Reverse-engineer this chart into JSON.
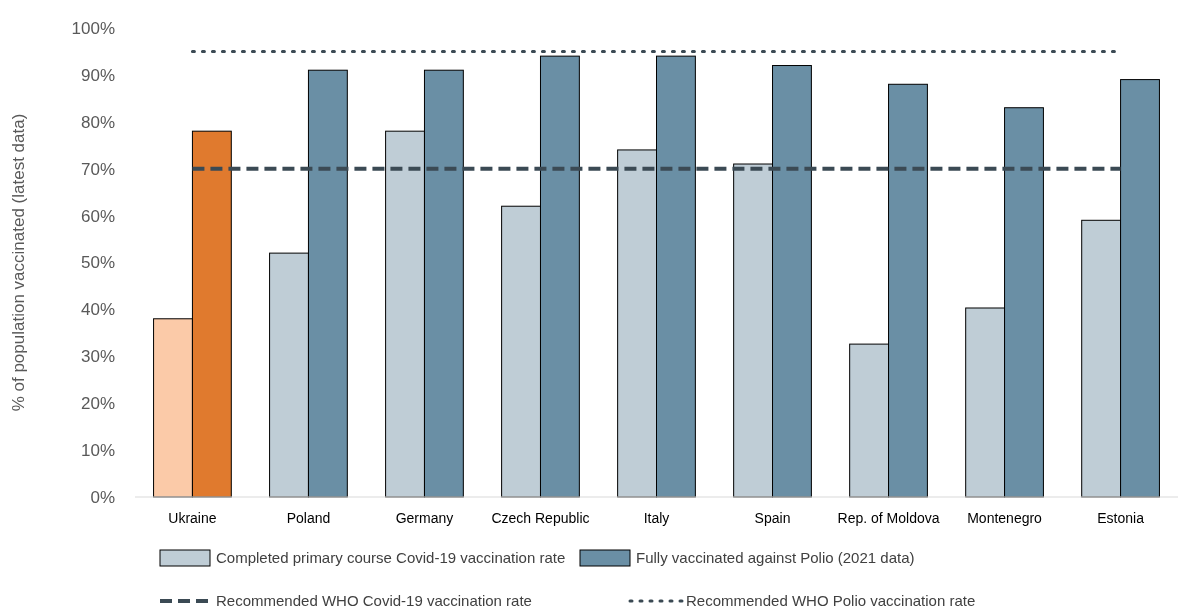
{
  "chart_data": {
    "type": "bar",
    "ylabel": "% of population vaccinated (latest data)",
    "categories": [
      "Ukraine",
      "Poland",
      "Germany",
      "Czech Republic",
      "Italy",
      "Spain",
      "Rep. of Moldova",
      "Montenegro",
      "Estonia"
    ],
    "series": [
      {
        "name": "Completed primary course Covid-19 vaccination rate",
        "color": "#bfcdd6",
        "colors": [
          "#fbcaa8",
          "#bfcdd6",
          "#bfcdd6",
          "#bfcdd6",
          "#bfcdd6",
          "#bfcdd6",
          "#bfcdd6",
          "#bfcdd6",
          "#bfcdd6"
        ],
        "values": [
          38,
          52,
          78,
          62,
          74,
          71,
          32.6,
          40.3,
          59
        ]
      },
      {
        "name": "Fully vaccinated against Polio (2021 data)",
        "color": "#6a8fa5",
        "colors": [
          "#e07a2e",
          "#6a8fa5",
          "#6a8fa5",
          "#6a8fa5",
          "#6a8fa5",
          "#6a8fa5",
          "#6a8fa5",
          "#6a8fa5",
          "#6a8fa5"
        ],
        "values": [
          78,
          91,
          91,
          94,
          94,
          92,
          88,
          83,
          89
        ]
      }
    ],
    "ref_lines": [
      {
        "axis": "y",
        "value": 70,
        "label": "Recommended WHO Covid-19 vaccination rate",
        "color": "#3b4a54",
        "line_style": "dashed"
      },
      {
        "axis": "y",
        "value": 95,
        "label": "Recommended WHO Polio vaccination rate",
        "color": "#3b4a54",
        "line_style": "dotted"
      }
    ],
    "ylim": [
      0,
      100
    ],
    "yticks": [
      {
        "value": 0,
        "label": "0%"
      },
      {
        "value": 10,
        "label": "10%"
      },
      {
        "value": 20,
        "label": "20%"
      },
      {
        "value": 30,
        "label": "30%"
      },
      {
        "value": 40,
        "label": "40%"
      },
      {
        "value": 50,
        "label": "50%"
      },
      {
        "value": 60,
        "label": "60%"
      },
      {
        "value": 70,
        "label": "70%"
      },
      {
        "value": 80,
        "label": "80%"
      },
      {
        "value": 90,
        "label": "90%"
      },
      {
        "value": 100,
        "label": "100%"
      }
    ],
    "grid": false,
    "legend": "bottom"
  }
}
